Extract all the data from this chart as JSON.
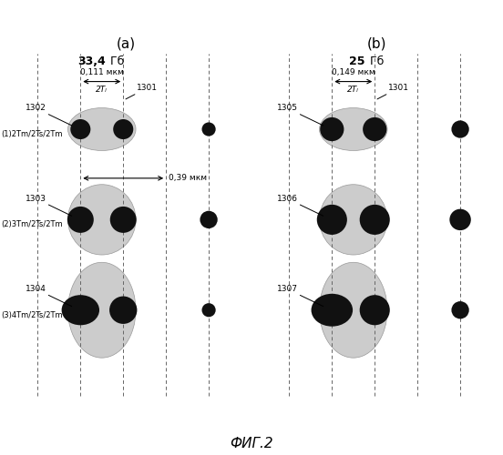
{
  "title_a": "(a)",
  "title_b": "(b)",
  "caption_a": "33,4 Гб",
  "caption_b": "25 Гб",
  "fig_caption": "ФИГ.2",
  "bg_color": "#ffffff",
  "dot_color": "#111111",
  "gray_color": "#cccccc",
  "gray_edge": "#999999",
  "dashed_color": "#666666",
  "text_color": "#111111",
  "labels_a": {
    "dim_label": "0,111 мкм",
    "tw_label": "2Tₗ",
    "track_label": "1301",
    "track_span": "0,39 мкм",
    "row1_num": "1302",
    "row1_text": "(1)2Tm/2Ts/2Tm",
    "row2_num": "1303",
    "row2_text": "(2)3Tm/2Ts/2Tm",
    "row3_num": "1304",
    "row3_text": "(3)4Tm/2Ts/2Tm"
  },
  "labels_b": {
    "dim_label": "0,149 мкм",
    "tw_label": "2Tₗ",
    "track_label": "1301",
    "row1_num": "1305",
    "row2_num": "1306",
    "row3_num": "1307"
  }
}
